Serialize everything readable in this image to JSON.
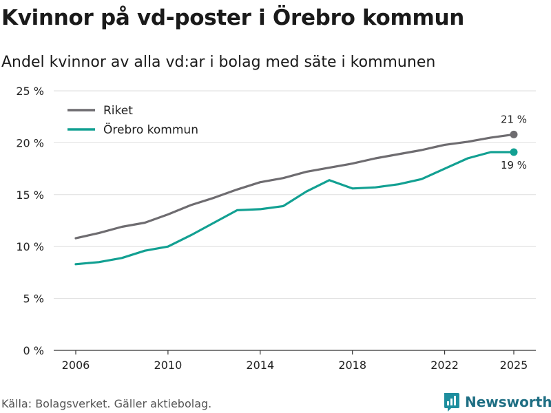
{
  "chart_data": {
    "type": "line",
    "title": "Kvinnor på vd-poster i Örebro kommun",
    "subtitle": "Andel kvinnor av alla vd:ar i bolag med säte i kommunen",
    "xlabel": "",
    "ylabel": "",
    "x": [
      2006,
      2007,
      2008,
      2009,
      2010,
      2011,
      2012,
      2013,
      2014,
      2015,
      2016,
      2017,
      2018,
      2019,
      2020,
      2021,
      2022,
      2023,
      2024,
      2025
    ],
    "xticks": [
      2006,
      2010,
      2014,
      2018,
      2022,
      2025
    ],
    "xtick_labels": [
      "2006",
      "2010",
      "2014",
      "2018",
      "2022",
      "2025"
    ],
    "yticks": [
      0,
      5,
      10,
      15,
      20,
      25
    ],
    "ytick_labels": [
      "0 %",
      "5 %",
      "10 %",
      "15 %",
      "20 %",
      "25 %"
    ],
    "ylim": [
      0,
      25
    ],
    "xlim": [
      2006,
      2025
    ],
    "series": [
      {
        "name": "Riket",
        "color": "#6e6c70",
        "values": [
          10.8,
          11.3,
          11.9,
          12.3,
          13.1,
          14.0,
          14.7,
          15.5,
          16.2,
          16.6,
          17.2,
          17.6,
          18.0,
          18.5,
          18.9,
          19.3,
          19.8,
          20.1,
          20.5,
          20.8
        ],
        "end_label": "21 %"
      },
      {
        "name": "Örebro kommun",
        "color": "#12a092",
        "values": [
          8.3,
          8.5,
          8.9,
          9.6,
          10.0,
          11.1,
          12.3,
          13.5,
          13.6,
          13.9,
          15.3,
          16.4,
          15.6,
          15.7,
          16.0,
          16.5,
          17.5,
          18.5,
          19.1,
          19.1
        ],
        "end_label": "19 %"
      }
    ],
    "legend_position": "top-left",
    "grid": true
  },
  "source": "Källa: Bolagsverket. Gäller aktiebolag.",
  "brand": {
    "name": "Newsworthy",
    "color": "#1e6e83",
    "icon": "newsworthy-logo-icon"
  }
}
